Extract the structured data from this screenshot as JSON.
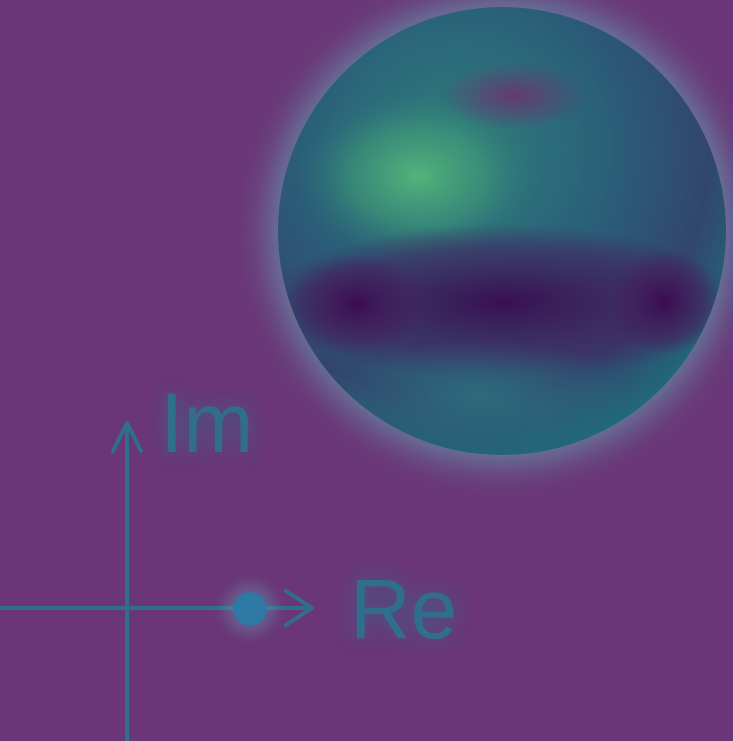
{
  "diagram": {
    "imaginary_axis_label": "Im",
    "real_axis_label": "Re"
  },
  "colors": {
    "background": "#6a3677",
    "glow": "#62c8c6",
    "axis": "#2f6f8d",
    "point": "#1f5f9b",
    "sphere_green": "#3f9a74",
    "sphere_teal": "#2d6f79",
    "sphere_dark": "#3b124f"
  }
}
